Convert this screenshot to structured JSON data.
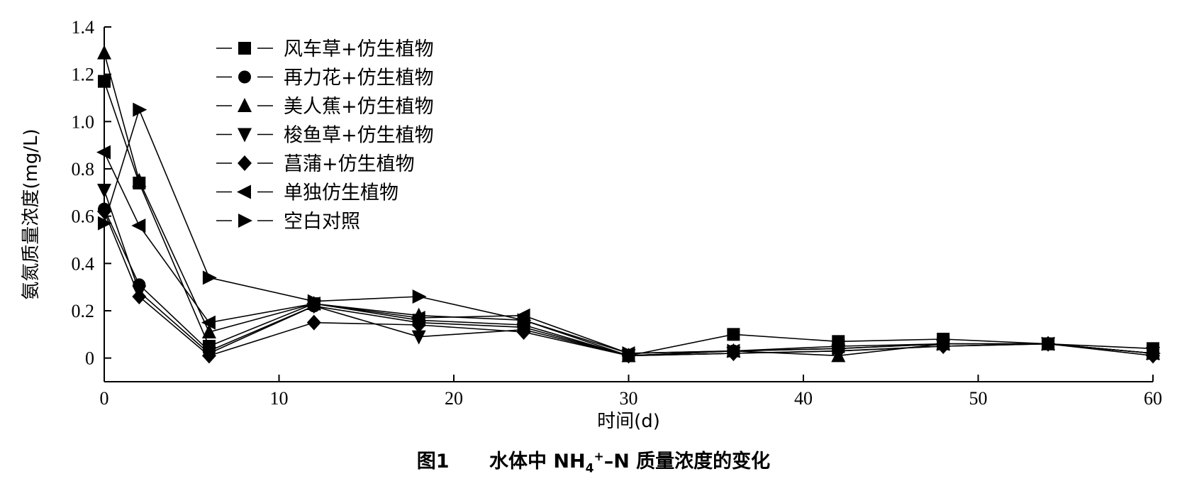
{
  "chart_data": {
    "type": "line",
    "title": "",
    "xlabel": "时间(d)",
    "ylabel": "氨氮质量浓度(mg/L)",
    "xlim": [
      0,
      60
    ],
    "ylim": [
      -0.1,
      1.4
    ],
    "x_ticks": [
      0,
      10,
      20,
      30,
      40,
      50,
      60
    ],
    "y_ticks": [
      0,
      0.2,
      0.4,
      0.6,
      0.8,
      1.0,
      1.2,
      1.4
    ],
    "y_tick_labels": [
      "0",
      "0.2",
      "0.4",
      "0.6",
      "0.8",
      "1.0",
      "1.2",
      "1.4"
    ],
    "legend_position": "top-left",
    "grid": false,
    "series": [
      {
        "name": "风车草+仿生植物",
        "marker": "square",
        "x": [
          0,
          2,
          6,
          12,
          18,
          24,
          30,
          36,
          42,
          48,
          54,
          60
        ],
        "y": [
          1.17,
          0.74,
          0.05,
          0.23,
          0.16,
          0.14,
          0.01,
          0.1,
          0.07,
          0.08,
          0.06,
          0.04
        ]
      },
      {
        "name": "再力花+仿生植物",
        "marker": "circle",
        "x": [
          0,
          2,
          6,
          12,
          18,
          24,
          30,
          36,
          42,
          48,
          54,
          60
        ],
        "y": [
          0.63,
          0.31,
          0.03,
          0.22,
          0.15,
          0.13,
          0.01,
          0.03,
          0.04,
          0.06,
          0.06,
          0.02
        ]
      },
      {
        "name": "美人蕉+仿生植物",
        "marker": "triangle-up",
        "x": [
          0,
          2,
          6,
          12,
          18,
          24,
          30,
          36,
          42,
          48,
          54,
          60
        ],
        "y": [
          1.29,
          0.75,
          0.11,
          0.23,
          0.18,
          0.16,
          0.01,
          0.03,
          0.01,
          0.06,
          0.06,
          0.02
        ]
      },
      {
        "name": "梭鱼草+仿生植物",
        "marker": "triangle-down",
        "x": [
          0,
          2,
          6,
          12,
          18,
          24,
          30,
          36,
          42,
          48,
          54,
          60
        ],
        "y": [
          0.71,
          0.28,
          0.02,
          0.22,
          0.09,
          0.12,
          0.01,
          0.02,
          0.03,
          0.05,
          0.06,
          0.02
        ]
      },
      {
        "name": "菖蒲+仿生植物",
        "marker": "diamond",
        "x": [
          0,
          2,
          6,
          12,
          18,
          24,
          30,
          36,
          42,
          48,
          54,
          60
        ],
        "y": [
          0.62,
          0.26,
          0.01,
          0.15,
          0.14,
          0.11,
          0.01,
          0.02,
          0.03,
          0.05,
          0.06,
          0.01
        ]
      },
      {
        "name": "单独仿生植物",
        "marker": "triangle-left",
        "x": [
          0,
          2,
          6,
          12,
          18,
          24,
          30,
          36,
          42,
          48,
          54,
          60
        ],
        "y": [
          0.87,
          0.56,
          0.15,
          0.23,
          0.17,
          0.18,
          0.02,
          0.03,
          0.05,
          0.06,
          0.06,
          0.02
        ]
      },
      {
        "name": "空白对照",
        "marker": "triangle-right",
        "x": [
          0,
          2,
          6,
          12,
          18,
          24,
          30,
          36,
          42,
          48,
          54,
          60
        ],
        "y": [
          0.57,
          1.05,
          0.34,
          0.24,
          0.26,
          0.16,
          0.02,
          0.03,
          0.04,
          0.06,
          0.06,
          0.02
        ]
      }
    ]
  },
  "caption": {
    "label": "图1",
    "text_before": "水体中 NH",
    "sub": "4",
    "sup": "+",
    "text_after": "–N 质量浓度的变化"
  }
}
